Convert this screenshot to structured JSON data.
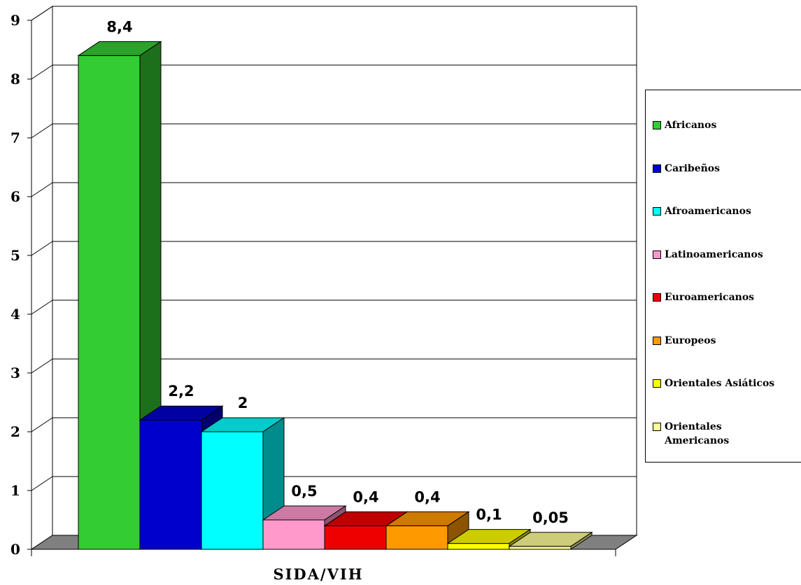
{
  "chart_data": {
    "type": "bar",
    "categories": [
      "Africanos",
      "Caribeños",
      "Afroamericanos",
      "Latinoamericanos",
      "Euroamericanos",
      "Europeos",
      "Orientales Asiáticos",
      "Orientales Americanos"
    ],
    "values": [
      8.4,
      2.2,
      2,
      0.5,
      0.4,
      0.4,
      0.1,
      0.05
    ],
    "value_labels": [
      "8,4",
      "2,2",
      "2",
      "0,5",
      "0,4",
      "0,4",
      "0,1",
      "0,05"
    ],
    "colors": [
      "#33cc33",
      "#0000cc",
      "#00ffff",
      "#ff99cc",
      "#ee0000",
      "#ff9900",
      "#ffff00",
      "#ffff99"
    ],
    "yticks": [
      "0",
      "1",
      "2",
      "3",
      "4",
      "5",
      "6",
      "7",
      "8",
      "9"
    ],
    "ylim": [
      0,
      9
    ],
    "xlabel": "SIDA/VIH",
    "ylabel": "",
    "title": "",
    "grid": true,
    "legend_position": "right"
  }
}
